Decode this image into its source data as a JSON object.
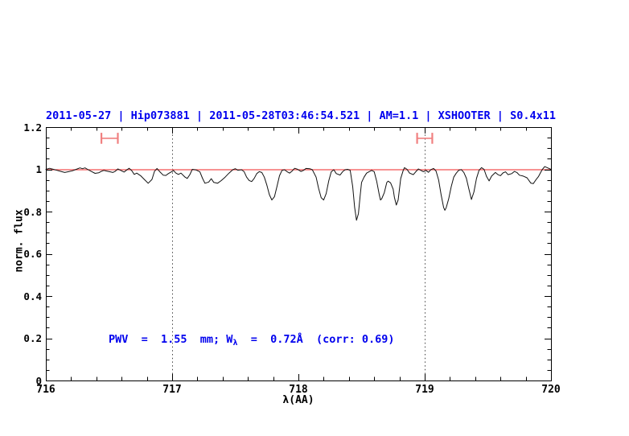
{
  "header": {
    "title": "2011-05-27 | Hip073881 | 2011-05-28T03:46:54.521 | AM=1.1 | XSHOOTER | S0.4x11"
  },
  "chart_data": {
    "type": "line",
    "title": "2011-05-27 | Hip073881 | 2011-05-28T03:46:54.521 | AM=1.1 | XSHOOTER | S0.4x11",
    "xlabel": "λ(AA)",
    "ylabel": "norm. flux",
    "xlim": [
      716,
      720
    ],
    "ylim": [
      0,
      1.2
    ],
    "grid": false,
    "x_tick_values": [
      716,
      717,
      718,
      719,
      720
    ],
    "x_tick_labels": [
      "716",
      "717",
      "718",
      "719",
      "720"
    ],
    "x_minor_step": 0.2,
    "y_tick_values": [
      0,
      0.2,
      0.4,
      0.6,
      0.8,
      1,
      1.2
    ],
    "y_tick_labels": [
      "0",
      "0.2",
      "0.4",
      "0.6",
      "0.8",
      "1",
      "1.2"
    ],
    "y_minor_step": 0.05,
    "vlines": {
      "x": [
        717,
        719
      ],
      "style": "dotted",
      "color": "#444444"
    },
    "continuum": {
      "y": 1.0,
      "color": "#f25252"
    },
    "range_markers": [
      {
        "x1": 716.44,
        "x2": 716.57,
        "y": 1.147,
        "cap_half_height": 0.026
      },
      {
        "x1": 718.94,
        "x2": 719.06,
        "y": 1.147,
        "cap_half_height": 0.026
      }
    ],
    "marker_color": "#f08080",
    "annotation": {
      "part1": "PWV  =  1.55  mm; W",
      "sub": "λ",
      "part2": "  =  0.72Å  (corr: 0.69)"
    },
    "colors": {
      "title_blue": "#0000ee",
      "annotation_blue": "#0000ee",
      "continuum_red": "#f25252",
      "marker_pink": "#f08080",
      "spectrum_black": "#111111",
      "axis_black": "#000000"
    },
    "series": [
      {
        "name": "normalized telluric spectrum",
        "color": "#111111",
        "points": [
          [
            716.0,
            1.0
          ],
          [
            716.03,
            1.005
          ],
          [
            716.06,
            1.0
          ],
          [
            716.09,
            0.995
          ],
          [
            716.12,
            0.99
          ],
          [
            716.15,
            0.985
          ],
          [
            716.18,
            0.989
          ],
          [
            716.21,
            0.993
          ],
          [
            716.24,
            1.0
          ],
          [
            716.27,
            1.007
          ],
          [
            716.29,
            1.003
          ],
          [
            716.31,
            1.007
          ],
          [
            716.33,
            1.0
          ],
          [
            716.36,
            0.99
          ],
          [
            716.39,
            0.981
          ],
          [
            716.42,
            0.984
          ],
          [
            716.44,
            0.991
          ],
          [
            716.46,
            0.995
          ],
          [
            716.48,
            0.992
          ],
          [
            716.51,
            0.988
          ],
          [
            716.53,
            0.985
          ],
          [
            716.55,
            0.991
          ],
          [
            716.57,
            1.002
          ],
          [
            716.59,
            0.996
          ],
          [
            716.62,
            0.987
          ],
          [
            716.64,
            0.997
          ],
          [
            716.66,
            1.005
          ],
          [
            716.68,
            0.994
          ],
          [
            716.7,
            0.976
          ],
          [
            716.72,
            0.982
          ],
          [
            716.75,
            0.97
          ],
          [
            716.78,
            0.952
          ],
          [
            716.81,
            0.934
          ],
          [
            716.84,
            0.952
          ],
          [
            716.86,
            0.99
          ],
          [
            716.88,
            1.004
          ],
          [
            716.9,
            0.99
          ],
          [
            716.93,
            0.972
          ],
          [
            716.95,
            0.971
          ],
          [
            716.97,
            0.98
          ],
          [
            717.0,
            0.99
          ],
          [
            717.01,
            0.995
          ],
          [
            717.03,
            0.982
          ],
          [
            717.05,
            0.976
          ],
          [
            717.07,
            0.982
          ],
          [
            717.1,
            0.964
          ],
          [
            717.12,
            0.957
          ],
          [
            717.14,
            0.975
          ],
          [
            717.16,
            1.0
          ],
          [
            717.19,
            0.997
          ],
          [
            717.22,
            0.988
          ],
          [
            717.24,
            0.958
          ],
          [
            717.26,
            0.934
          ],
          [
            717.29,
            0.94
          ],
          [
            717.31,
            0.956
          ],
          [
            717.33,
            0.938
          ],
          [
            717.36,
            0.934
          ],
          [
            717.39,
            0.947
          ],
          [
            717.42,
            0.963
          ],
          [
            717.45,
            0.982
          ],
          [
            717.48,
            0.998
          ],
          [
            717.5,
            1.003
          ],
          [
            717.52,
            0.996
          ],
          [
            717.55,
            0.998
          ],
          [
            717.57,
            0.989
          ],
          [
            717.59,
            0.963
          ],
          [
            717.61,
            0.947
          ],
          [
            717.63,
            0.942
          ],
          [
            717.65,
            0.957
          ],
          [
            717.67,
            0.98
          ],
          [
            717.69,
            0.989
          ],
          [
            717.71,
            0.985
          ],
          [
            717.73,
            0.963
          ],
          [
            717.75,
            0.925
          ],
          [
            717.77,
            0.88
          ],
          [
            717.79,
            0.855
          ],
          [
            717.81,
            0.87
          ],
          [
            717.83,
            0.918
          ],
          [
            717.85,
            0.97
          ],
          [
            717.87,
            0.995
          ],
          [
            717.89,
            0.998
          ],
          [
            717.91,
            0.989
          ],
          [
            717.93,
            0.982
          ],
          [
            717.95,
            0.992
          ],
          [
            717.97,
            1.005
          ],
          [
            717.99,
            1.001
          ],
          [
            718.02,
            0.99
          ],
          [
            718.04,
            0.995
          ],
          [
            718.06,
            1.004
          ],
          [
            718.09,
            1.003
          ],
          [
            718.11,
            0.998
          ],
          [
            718.14,
            0.963
          ],
          [
            718.16,
            0.91
          ],
          [
            718.18,
            0.866
          ],
          [
            718.2,
            0.855
          ],
          [
            718.22,
            0.885
          ],
          [
            718.24,
            0.945
          ],
          [
            718.26,
            0.988
          ],
          [
            718.28,
            0.998
          ],
          [
            718.3,
            0.98
          ],
          [
            718.33,
            0.973
          ],
          [
            718.35,
            0.989
          ],
          [
            718.37,
            0.998
          ],
          [
            718.39,
            1.0
          ],
          [
            718.41,
            0.995
          ],
          [
            718.43,
            0.918
          ],
          [
            718.445,
            0.82
          ],
          [
            718.46,
            0.759
          ],
          [
            718.475,
            0.79
          ],
          [
            718.49,
            0.88
          ],
          [
            718.5,
            0.938
          ],
          [
            718.52,
            0.963
          ],
          [
            718.54,
            0.982
          ],
          [
            718.56,
            0.989
          ],
          [
            718.58,
            0.995
          ],
          [
            718.6,
            0.989
          ],
          [
            718.62,
            0.944
          ],
          [
            718.64,
            0.88
          ],
          [
            718.65,
            0.855
          ],
          [
            718.66,
            0.861
          ],
          [
            718.68,
            0.89
          ],
          [
            718.7,
            0.938
          ],
          [
            718.71,
            0.944
          ],
          [
            718.73,
            0.936
          ],
          [
            718.75,
            0.906
          ],
          [
            718.76,
            0.868
          ],
          [
            718.775,
            0.831
          ],
          [
            718.79,
            0.855
          ],
          [
            718.8,
            0.906
          ],
          [
            718.81,
            0.957
          ],
          [
            718.83,
            0.995
          ],
          [
            718.84,
            1.008
          ],
          [
            718.86,
            1.0
          ],
          [
            718.88,
            0.982
          ],
          [
            718.91,
            0.975
          ],
          [
            718.93,
            0.989
          ],
          [
            718.95,
            1.002
          ],
          [
            718.97,
            0.995
          ],
          [
            718.99,
            0.989
          ],
          [
            719.01,
            0.995
          ],
          [
            719.03,
            0.986
          ],
          [
            719.05,
            0.999
          ],
          [
            719.07,
            1.004
          ],
          [
            719.09,
            0.992
          ],
          [
            719.11,
            0.95
          ],
          [
            719.13,
            0.88
          ],
          [
            719.15,
            0.82
          ],
          [
            719.16,
            0.806
          ],
          [
            719.17,
            0.818
          ],
          [
            719.19,
            0.86
          ],
          [
            719.21,
            0.918
          ],
          [
            719.23,
            0.963
          ],
          [
            719.25,
            0.982
          ],
          [
            719.27,
            0.996
          ],
          [
            719.29,
            0.999
          ],
          [
            719.31,
            0.985
          ],
          [
            719.33,
            0.958
          ],
          [
            719.35,
            0.906
          ],
          [
            719.37,
            0.857
          ],
          [
            719.39,
            0.893
          ],
          [
            719.41,
            0.957
          ],
          [
            719.43,
            0.995
          ],
          [
            719.45,
            1.008
          ],
          [
            719.47,
            1.0
          ],
          [
            719.49,
            0.966
          ],
          [
            719.51,
            0.945
          ],
          [
            719.53,
            0.968
          ],
          [
            719.56,
            0.985
          ],
          [
            719.58,
            0.975
          ],
          [
            719.6,
            0.97
          ],
          [
            719.62,
            0.983
          ],
          [
            719.64,
            0.988
          ],
          [
            719.66,
            0.975
          ],
          [
            719.69,
            0.98
          ],
          [
            719.71,
            0.99
          ],
          [
            719.73,
            0.985
          ],
          [
            719.75,
            0.972
          ],
          [
            719.78,
            0.968
          ],
          [
            719.81,
            0.96
          ],
          [
            719.84,
            0.935
          ],
          [
            719.86,
            0.932
          ],
          [
            719.88,
            0.95
          ],
          [
            719.9,
            0.965
          ],
          [
            719.93,
            0.998
          ],
          [
            719.95,
            1.013
          ],
          [
            719.97,
            1.008
          ],
          [
            720.0,
            1.0
          ]
        ]
      }
    ]
  }
}
